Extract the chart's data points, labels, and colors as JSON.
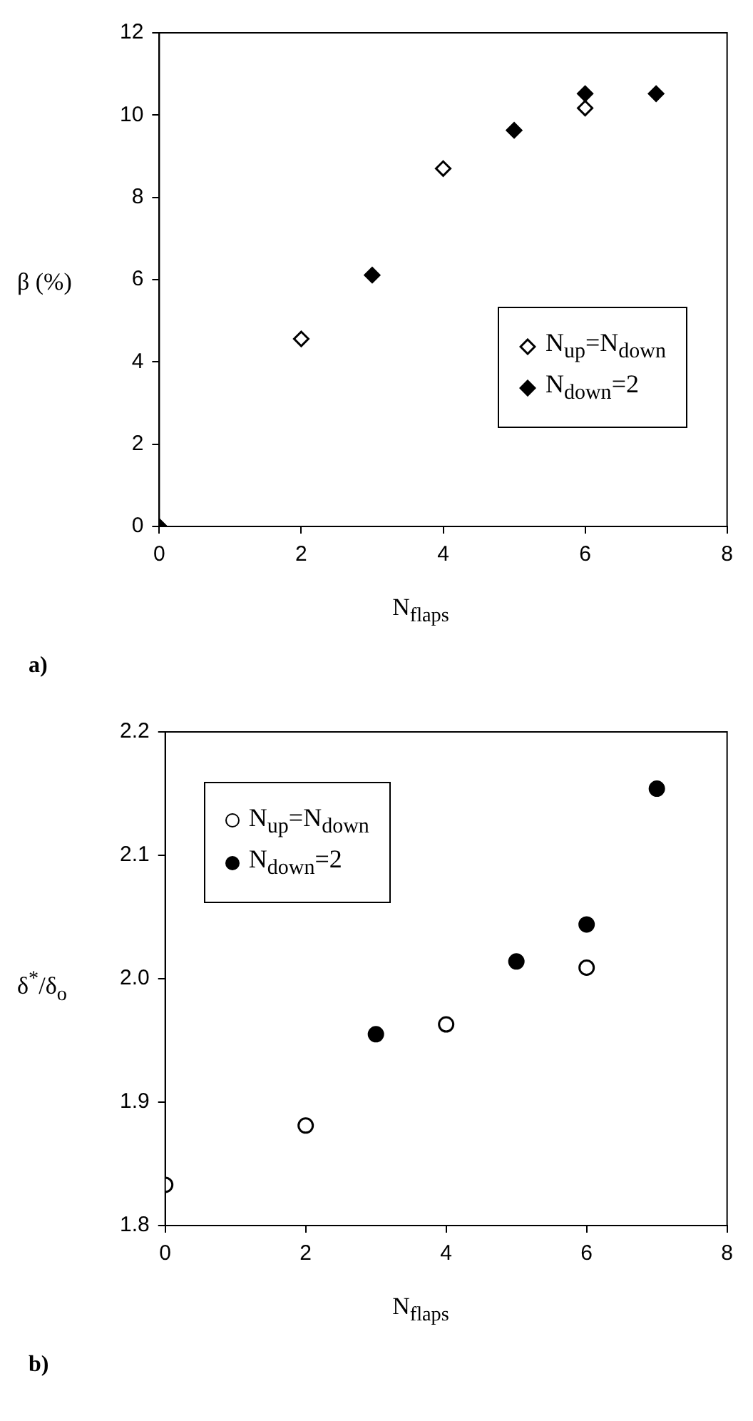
{
  "chart_data": [
    {
      "type": "scatter",
      "xlabel": "N$_{flaps}$",
      "ylabel": "β (%)",
      "xlim": [
        0,
        8
      ],
      "xticks": [
        0,
        2,
        4,
        6,
        8
      ],
      "ylim": [
        0,
        12
      ],
      "yticks": [
        0,
        2,
        4,
        6,
        8,
        10,
        12
      ],
      "grid": false,
      "legend": "bottom right",
      "annotations": [
        "a)"
      ],
      "series": [
        {
          "name": "N$_{up}$=N$_{down}$",
          "color": "#000000",
          "marker": "diamond",
          "x": [
            2,
            4,
            6
          ],
          "values": [
            4.56,
            8.7,
            10.17
          ]
        },
        {
          "name": "N$_{down}$=2",
          "color": "#000000",
          "marker": "diamond",
          "x": [
            0,
            3,
            5,
            6,
            7
          ],
          "values": [
            0,
            6.11,
            9.63,
            10.52,
            10.52
          ]
        }
      ]
    },
    {
      "type": "scatter",
      "xlabel": "N$_{flaps}$",
      "ylabel": "δ$^{*}$/δ$_{o}$",
      "xlim": [
        0,
        8
      ],
      "xticks": [
        0,
        2,
        4,
        6,
        8
      ],
      "ylim": [
        1.8,
        2.2
      ],
      "yticks": [
        1.8,
        1.9,
        {
          "value": 2,
          "label": "2.0"
        },
        2.1,
        2.2
      ],
      "grid": false,
      "legend": "top left",
      "annotations": [
        "b)"
      ],
      "series": [
        {
          "name": "N$_{up}$=N$_{down}$",
          "color": "#000000",
          "marker": "circle",
          "x": [
            0,
            2,
            4,
            6
          ],
          "values": [
            1.833,
            1.881,
            1.963,
            2.009
          ]
        },
        {
          "name": "N$_{down}$=2",
          "color": "#000000",
          "marker": "circle",
          "x": [
            3,
            5,
            6,
            7
          ],
          "values": [
            1.955,
            2.014,
            2.044,
            2.154
          ]
        }
      ]
    }
  ]
}
